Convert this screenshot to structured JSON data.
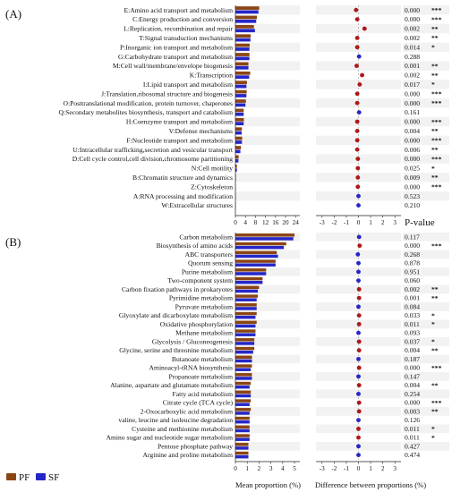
{
  "colors": {
    "PF": "#8b4513",
    "SF": "#2626c8",
    "highlight": "#f2f2f2",
    "dot_sig": "#b01818",
    "dot_nonsig": "#2626c8",
    "error": "#6a2a2a"
  },
  "legend": {
    "pf_label": "PF",
    "sf_label": "SF"
  },
  "pvalue_header": "P-value",
  "axis_titles": {
    "mean": "Mean proportion (%)",
    "diff": "Difference between proportions (%)"
  },
  "chart_data": [
    {
      "type": "bar",
      "panel_label": "(A)",
      "mean_ticks": [
        0,
        4,
        8,
        12,
        16,
        20,
        24
      ],
      "diff_ticks": [
        -3,
        -2,
        -1,
        0,
        1,
        2,
        3
      ],
      "xlim": [
        0,
        25
      ],
      "diff_lim": [
        -3.5,
        3.5
      ],
      "categories": [
        "E:Amino acid transport and metabolism",
        "C:Energy production and conversion",
        "L:Replication, recombination and repair",
        "T:Signal transduction mechanisms",
        "P:Inorganic ion transport and metabolism",
        "G:Carbohydrate transport and metabolism",
        "M:Cell wall/membrane/envelope biogenesis",
        "K:Transcription",
        "I:Lipid transport and metabolism",
        "J:Translation,ribosomal structure and biogenesis",
        "O:Posttranslational modification, protein turnover, chaperones",
        "Q:Secondary metabolites biosynthesis, transport and catabolism",
        "H:Coenzyme transport and metabolism",
        "V:Defense mechanisms",
        "F:Nucleotide transport and metabolism",
        "U:Intracellular trafficking,secretion and vesicular transport",
        "D:Cell cycle control,cell division,chromosome partitioning",
        "N:Cell motility",
        "B:Chromatin structure and dynamics",
        "Z:Cytoskeleton",
        "A:RNA processing and modification",
        "W:Extracellular structures"
      ],
      "series": [
        {
          "name": "PF",
          "values": [
            9.5,
            8.6,
            7.4,
            6.1,
            5.7,
            5.6,
            5.2,
            5.9,
            4.6,
            4.5,
            4.2,
            3.3,
            3.4,
            2.6,
            2.7,
            2.2,
            1.3,
            0.6,
            0.2,
            0.1,
            0.05,
            0.02
          ]
        },
        {
          "name": "SF",
          "values": [
            9.2,
            8.3,
            7.8,
            6.0,
            5.6,
            5.6,
            5.2,
            5.5,
            4.4,
            4.4,
            4.0,
            3.3,
            3.3,
            2.5,
            2.6,
            2.0,
            1.2,
            0.6,
            0.2,
            0.1,
            0.05,
            0.02
          ]
        }
      ],
      "difference": [
        -0.2,
        -0.1,
        0.5,
        -0.1,
        -0.1,
        0.05,
        -0.15,
        0.3,
        0.1,
        -0.1,
        -0.1,
        0.05,
        -0.1,
        -0.1,
        -0.1,
        -0.1,
        -0.05,
        -0.05,
        -0.05,
        -0.05,
        0.0,
        0.0
      ],
      "p_values": [
        "0.000",
        "0.000",
        "0.002",
        "0.002",
        "0.014",
        "0.288",
        "0.001",
        "0.002",
        "0.017",
        "0.000",
        "0.000",
        "0.161",
        "0.000",
        "0.004",
        "0.000",
        "0.006",
        "0.000",
        "0.025",
        "0.009",
        "0.000",
        "0.523",
        "0.210"
      ],
      "significance": [
        "***",
        "***",
        "**",
        "**",
        "*",
        "",
        "**",
        "**",
        "*",
        "***",
        "***",
        "",
        "***",
        "**",
        "***",
        "**",
        "***",
        "*",
        "**",
        "***",
        "",
        ""
      ]
    },
    {
      "type": "bar",
      "panel_label": "(B)",
      "mean_ticks": [
        0,
        1,
        2,
        3,
        4,
        5
      ],
      "diff_ticks": [
        -3,
        -2,
        -1,
        0,
        1,
        2,
        3
      ],
      "xlim": [
        0,
        5.3
      ],
      "diff_lim": [
        -3.5,
        3.5
      ],
      "categories": [
        "Carbon metabolism",
        "Biosynthesis of amino acids",
        "ABC transporters",
        "Quorum sensing",
        "Purine metabolism",
        "Two-component system",
        "Carbon fixation pathways in prokaryotes",
        "Pyrimidine metabolism",
        "Pyruvate metabolism",
        "Glyoxylate and dicarboxylate metabolism",
        "Oxidative phosphorylation",
        "Methane metabolism",
        "Glycolysis / Gluconeogenesis",
        "Glycine, serine and threonine metabolism",
        "Butanoate metabolism",
        "Aminoacyl-tRNA biosynthesis",
        "Propanoate metabolism",
        "Alanine, aspartate and glutamate metabolism",
        "Fatty acid metabolism",
        "Citrate cycle (TCA cycle)",
        "2-Oxocarboxylic acid metabolism",
        "valine, leucine and isoleucine degradation",
        "Cysteine and methionine metabolism",
        "Amino sugar and nucleotide sugar metabolism",
        "Pentose phosphate pathway",
        "Arginine and proline metabolism"
      ],
      "series": [
        {
          "name": "PF",
          "values": [
            5.0,
            4.3,
            3.5,
            3.4,
            2.6,
            2.3,
            2.0,
            1.9,
            1.8,
            1.8,
            1.8,
            1.7,
            1.6,
            1.6,
            1.4,
            1.4,
            1.4,
            1.3,
            1.3,
            1.3,
            1.3,
            1.2,
            1.2,
            1.2,
            1.1,
            1.1
          ]
        },
        {
          "name": "SF",
          "values": [
            4.9,
            4.1,
            3.6,
            3.4,
            2.6,
            2.3,
            1.9,
            1.8,
            1.8,
            1.7,
            1.7,
            1.7,
            1.6,
            1.5,
            1.4,
            1.3,
            1.4,
            1.2,
            1.3,
            1.2,
            1.2,
            1.2,
            1.2,
            1.2,
            1.1,
            1.1
          ]
        }
      ],
      "difference": [
        0.05,
        0.1,
        -0.05,
        0.0,
        0.0,
        0.0,
        0.05,
        0.05,
        0.0,
        0.05,
        0.05,
        0.0,
        0.05,
        0.05,
        0.0,
        0.05,
        0.0,
        0.05,
        0.0,
        0.05,
        0.05,
        0.0,
        0.0,
        0.0,
        0.0,
        0.0
      ],
      "p_values": [
        "0.117",
        "0.000",
        "0.268",
        "0.878",
        "0.951",
        "0.060",
        "0.002",
        "0.001",
        "0.084",
        "0.033",
        "0.011",
        "0.093",
        "0.037",
        "0.004",
        "0.187",
        "0.000",
        "0.147",
        "0.004",
        "0.254",
        "0.000",
        "0.003",
        "0.126",
        "0.011",
        "0.011",
        "0.427",
        "0.474"
      ],
      "significance": [
        "",
        "***",
        "",
        "",
        "",
        "",
        "**",
        "**",
        "",
        "*",
        "*",
        "",
        "*",
        "**",
        "",
        "***",
        "",
        "**",
        "",
        "***",
        "**",
        "",
        "*",
        "*",
        "",
        ""
      ]
    }
  ]
}
